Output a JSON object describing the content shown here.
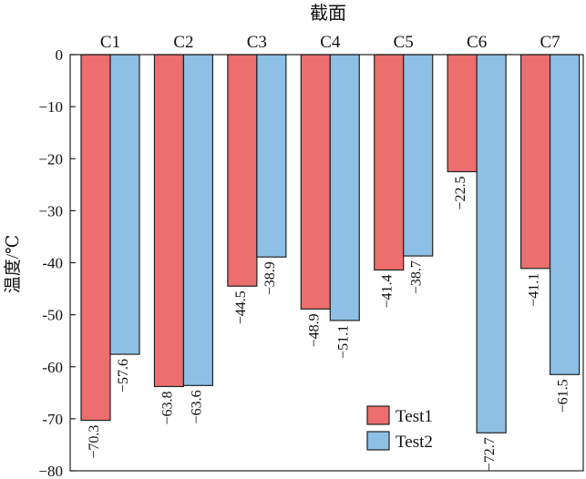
{
  "chart_data": {
    "type": "bar",
    "title": "截面",
    "xlabel": "",
    "ylabel": "温度/℃",
    "categories": [
      "C1",
      "C2",
      "C3",
      "C4",
      "C5",
      "C6",
      "C7"
    ],
    "ylim": [
      -80,
      0
    ],
    "yticks": [
      0,
      -10,
      -20,
      -30,
      -40,
      -50,
      -60,
      -70,
      -80
    ],
    "ytick_labels": [
      "0",
      "−10",
      "−20",
      "−30",
      "-40",
      "-50",
      "-60",
      "-70",
      "−80"
    ],
    "legend_position": "bottom-right",
    "series": [
      {
        "name": "Test1",
        "color": "#EC6E6E",
        "values": [
          -70.3,
          -63.8,
          -44.5,
          -48.9,
          -41.4,
          -22.5,
          -41.1
        ],
        "labels": [
          "−70.3",
          "−63.8",
          "−44.5",
          "−48.9",
          "−41.4",
          "−22.5",
          "−41.1"
        ]
      },
      {
        "name": "Test2",
        "color": "#8DC0E4",
        "values": [
          -57.6,
          -63.6,
          -38.9,
          -51.1,
          -38.7,
          -72.7,
          -61.5
        ],
        "labels": [
          "−57.6",
          "−63.6",
          "−38.9",
          "−51.1",
          "−38.7",
          "−72.7",
          "−61.5"
        ]
      }
    ]
  }
}
